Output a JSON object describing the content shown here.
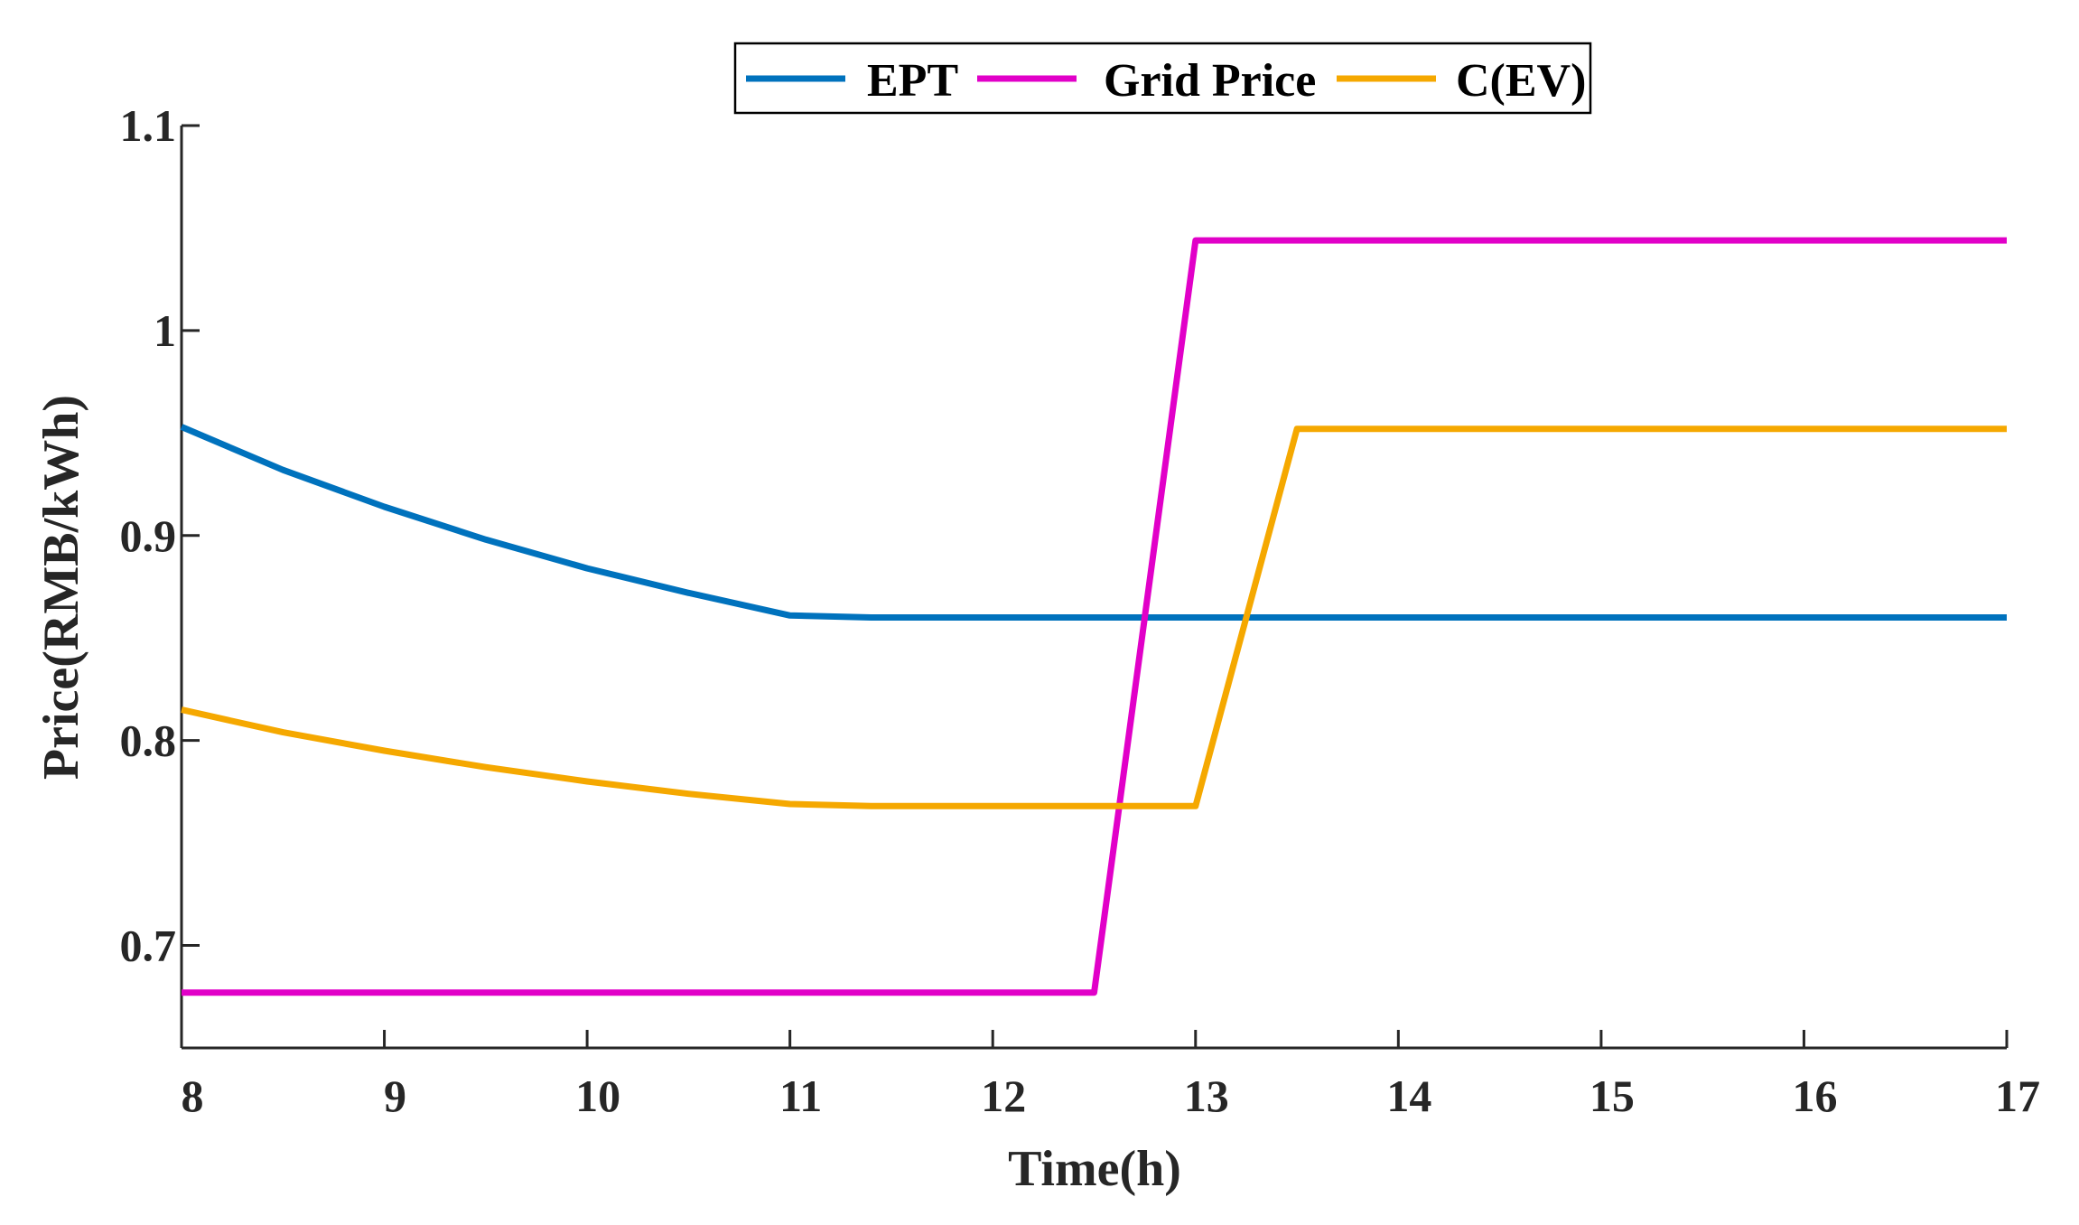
{
  "chart_data": {
    "type": "line",
    "title": "",
    "xlabel": "Time(h)",
    "ylabel": "Price(RMB/kWh)",
    "xlim": [
      8,
      17
    ],
    "ylim": [
      0.65,
      1.1
    ],
    "xticks": [
      8,
      9,
      10,
      11,
      12,
      13,
      14,
      15,
      16,
      17
    ],
    "yticks": [
      0.7,
      0.8,
      0.9,
      1,
      1.1
    ],
    "xtick_labels": [
      "8",
      "9",
      "10",
      "11",
      "12",
      "13",
      "14",
      "15",
      "16",
      "17"
    ],
    "ytick_labels": [
      "0.7",
      "0.8",
      "0.9",
      "1",
      "1.1"
    ],
    "grid": false,
    "legend_position": "top-center",
    "series": [
      {
        "name": "EPT",
        "color": "#0072BD",
        "x": [
          8,
          8.5,
          9,
          9.5,
          10,
          10.5,
          11,
          11.4,
          12,
          13,
          14,
          15,
          16,
          17
        ],
        "y": [
          0.953,
          0.932,
          0.914,
          0.898,
          0.884,
          0.872,
          0.861,
          0.86,
          0.86,
          0.86,
          0.86,
          0.86,
          0.86,
          0.86
        ]
      },
      {
        "name": "Grid Price",
        "color": "#E100C8",
        "x": [
          8,
          12.5,
          13,
          17
        ],
        "y": [
          0.677,
          0.677,
          1.044,
          1.044
        ]
      },
      {
        "name": "C(EV)",
        "color": "#F5A800",
        "x": [
          8,
          8.5,
          9,
          9.5,
          10,
          10.5,
          11,
          11.4,
          12,
          13,
          13.5,
          17
        ],
        "y": [
          0.815,
          0.804,
          0.795,
          0.787,
          0.78,
          0.774,
          0.769,
          0.768,
          0.768,
          0.768,
          0.952,
          0.952
        ]
      }
    ]
  }
}
